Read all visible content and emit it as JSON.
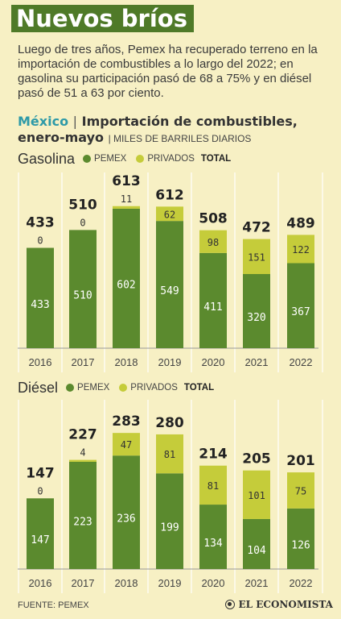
{
  "header": {
    "title": "Nuevos bríos",
    "intro": "Luego de tres años, Pemex ha recuperado terreno en la importación de combustibles a lo largo del 2022; en gasolina su participación pasó de 68 a 75% y en diésel pasó de 51 a 63 por ciento.",
    "subtitle_place": "México",
    "subtitle_separator": "|",
    "subtitle_line1": "Importación de combustibles,",
    "subtitle_line2": "enero-mayo",
    "units": "| MILES DE BARRILES DIARIOS"
  },
  "legend": {
    "pemex_label": "PEMEX",
    "privados_label": "PRIVADOS",
    "total_label": "TOTAL"
  },
  "colors": {
    "pemex": "#5b8a2e",
    "privados": "#c5cc3a",
    "title_bg": "#4f7a28",
    "accent_text": "#2e9aa8",
    "background": "#f7f0c4"
  },
  "chart_data": [
    {
      "type": "bar",
      "stacked": true,
      "name": "Gasolina",
      "categories": [
        "2016",
        "2017",
        "2018",
        "2019",
        "2020",
        "2021",
        "2022"
      ],
      "series": [
        {
          "name": "PEMEX",
          "values": [
            433,
            510,
            602,
            549,
            411,
            320,
            367
          ]
        },
        {
          "name": "PRIVADOS",
          "values": [
            0,
            0,
            11,
            62,
            98,
            151,
            122
          ]
        }
      ],
      "totals": [
        433,
        510,
        613,
        612,
        508,
        472,
        489
      ],
      "ylim": [
        0,
        640
      ],
      "grid": "vertical"
    },
    {
      "type": "bar",
      "stacked": true,
      "name": "Diésel",
      "categories": [
        "2016",
        "2017",
        "2018",
        "2019",
        "2020",
        "2021",
        "2022"
      ],
      "series": [
        {
          "name": "PEMEX",
          "values": [
            147,
            223,
            236,
            199,
            134,
            104,
            126
          ]
        },
        {
          "name": "PRIVADOS",
          "values": [
            0,
            4,
            47,
            81,
            81,
            101,
            75
          ]
        }
      ],
      "totals": [
        147,
        227,
        283,
        280,
        214,
        205,
        201
      ],
      "ylim": [
        0,
        295
      ],
      "grid": "vertical"
    }
  ],
  "footer": {
    "source": "FUENTE: PEMEX",
    "brand": "EL ECONOMISTA"
  }
}
